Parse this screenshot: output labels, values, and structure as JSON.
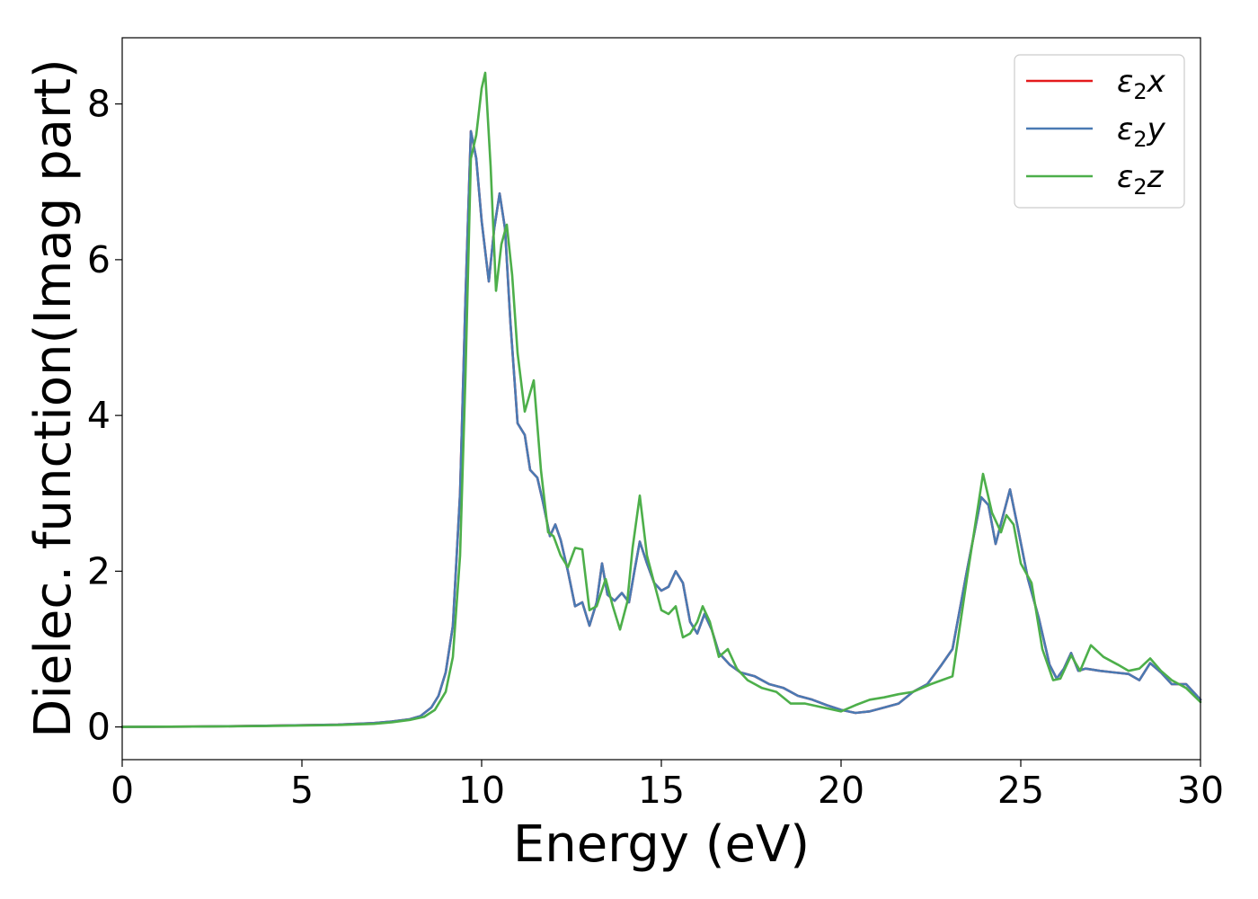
{
  "chart_data": {
    "type": "line",
    "title": "",
    "xlabel": "Energy (eV)",
    "ylabel": "Dielec. function(Imag part)",
    "xlim": [
      0,
      30
    ],
    "ylim": [
      -0.42,
      8.85
    ],
    "xticks": [
      0,
      5,
      10,
      15,
      20,
      25,
      30
    ],
    "yticks": [
      0,
      2,
      4,
      6,
      8
    ],
    "xtick_labels": [
      "0",
      "5",
      "10",
      "15",
      "20",
      "25",
      "30"
    ],
    "ytick_labels": [
      "0",
      "2",
      "4",
      "6",
      "8"
    ],
    "grid": false,
    "legend_position": "top-right",
    "series": [
      {
        "name": "ε2x",
        "legend_base": "ε",
        "legend_sub": "2",
        "legend_tail": "x",
        "color": "#e41a1c",
        "points": [
          [
            0,
            0
          ],
          [
            2,
            0.005
          ],
          [
            4,
            0.015
          ],
          [
            6,
            0.03
          ],
          [
            7,
            0.05
          ],
          [
            7.5,
            0.07
          ],
          [
            8,
            0.1
          ],
          [
            8.3,
            0.14
          ],
          [
            8.6,
            0.25
          ],
          [
            8.8,
            0.4
          ],
          [
            9.0,
            0.7
          ],
          [
            9.2,
            1.3
          ],
          [
            9.4,
            3.0
          ],
          [
            9.55,
            5.5
          ],
          [
            9.7,
            7.65
          ],
          [
            9.85,
            7.3
          ],
          [
            10.0,
            6.5
          ],
          [
            10.2,
            5.72
          ],
          [
            10.35,
            6.4
          ],
          [
            10.5,
            6.85
          ],
          [
            10.65,
            6.4
          ],
          [
            10.8,
            5.2
          ],
          [
            11.0,
            3.9
          ],
          [
            11.2,
            3.75
          ],
          [
            11.35,
            3.3
          ],
          [
            11.55,
            3.2
          ],
          [
            11.7,
            2.9
          ],
          [
            11.9,
            2.45
          ],
          [
            12.05,
            2.6
          ],
          [
            12.2,
            2.4
          ],
          [
            12.4,
            2.0
          ],
          [
            12.6,
            1.55
          ],
          [
            12.8,
            1.6
          ],
          [
            13.0,
            1.3
          ],
          [
            13.2,
            1.6
          ],
          [
            13.35,
            2.1
          ],
          [
            13.5,
            1.7
          ],
          [
            13.7,
            1.62
          ],
          [
            13.9,
            1.72
          ],
          [
            14.1,
            1.6
          ],
          [
            14.25,
            2.0
          ],
          [
            14.4,
            2.38
          ],
          [
            14.6,
            2.1
          ],
          [
            14.8,
            1.85
          ],
          [
            15.0,
            1.75
          ],
          [
            15.2,
            1.8
          ],
          [
            15.4,
            2.0
          ],
          [
            15.6,
            1.85
          ],
          [
            15.8,
            1.35
          ],
          [
            16.0,
            1.2
          ],
          [
            16.2,
            1.45
          ],
          [
            16.4,
            1.25
          ],
          [
            16.6,
            0.95
          ],
          [
            16.9,
            0.8
          ],
          [
            17.2,
            0.7
          ],
          [
            17.6,
            0.65
          ],
          [
            18.0,
            0.55
          ],
          [
            18.4,
            0.5
          ],
          [
            18.8,
            0.4
          ],
          [
            19.2,
            0.35
          ],
          [
            19.6,
            0.28
          ],
          [
            20.0,
            0.22
          ],
          [
            20.4,
            0.18
          ],
          [
            20.8,
            0.2
          ],
          [
            21.2,
            0.25
          ],
          [
            21.6,
            0.3
          ],
          [
            22.0,
            0.45
          ],
          [
            22.4,
            0.55
          ],
          [
            22.8,
            0.8
          ],
          [
            23.1,
            1.0
          ],
          [
            23.5,
            2.0
          ],
          [
            23.9,
            2.95
          ],
          [
            24.1,
            2.85
          ],
          [
            24.3,
            2.35
          ],
          [
            24.5,
            2.7
          ],
          [
            24.7,
            3.05
          ],
          [
            24.9,
            2.6
          ],
          [
            25.2,
            1.9
          ],
          [
            25.5,
            1.4
          ],
          [
            25.8,
            0.8
          ],
          [
            26.0,
            0.62
          ],
          [
            26.2,
            0.75
          ],
          [
            26.4,
            0.95
          ],
          [
            26.6,
            0.72
          ],
          [
            26.8,
            0.75
          ],
          [
            27.2,
            0.72
          ],
          [
            27.6,
            0.7
          ],
          [
            28.0,
            0.68
          ],
          [
            28.3,
            0.6
          ],
          [
            28.6,
            0.82
          ],
          [
            28.9,
            0.7
          ],
          [
            29.2,
            0.55
          ],
          [
            29.6,
            0.55
          ],
          [
            30.0,
            0.35
          ]
        ]
      },
      {
        "name": "ε2y",
        "legend_base": "ε",
        "legend_sub": "2",
        "legend_tail": "y",
        "color": "#4a7ab3",
        "points": [
          [
            0,
            0
          ],
          [
            2,
            0.005
          ],
          [
            4,
            0.015
          ],
          [
            6,
            0.03
          ],
          [
            7,
            0.05
          ],
          [
            7.5,
            0.07
          ],
          [
            8,
            0.1
          ],
          [
            8.3,
            0.14
          ],
          [
            8.6,
            0.25
          ],
          [
            8.8,
            0.4
          ],
          [
            9.0,
            0.7
          ],
          [
            9.2,
            1.3
          ],
          [
            9.4,
            3.0
          ],
          [
            9.55,
            5.5
          ],
          [
            9.7,
            7.65
          ],
          [
            9.85,
            7.3
          ],
          [
            10.0,
            6.5
          ],
          [
            10.2,
            5.72
          ],
          [
            10.35,
            6.4
          ],
          [
            10.5,
            6.85
          ],
          [
            10.65,
            6.4
          ],
          [
            10.8,
            5.2
          ],
          [
            11.0,
            3.9
          ],
          [
            11.2,
            3.75
          ],
          [
            11.35,
            3.3
          ],
          [
            11.55,
            3.2
          ],
          [
            11.7,
            2.9
          ],
          [
            11.9,
            2.45
          ],
          [
            12.05,
            2.6
          ],
          [
            12.2,
            2.4
          ],
          [
            12.4,
            2.0
          ],
          [
            12.6,
            1.55
          ],
          [
            12.8,
            1.6
          ],
          [
            13.0,
            1.3
          ],
          [
            13.2,
            1.6
          ],
          [
            13.35,
            2.1
          ],
          [
            13.5,
            1.7
          ],
          [
            13.7,
            1.62
          ],
          [
            13.9,
            1.72
          ],
          [
            14.1,
            1.6
          ],
          [
            14.25,
            2.0
          ],
          [
            14.4,
            2.38
          ],
          [
            14.6,
            2.1
          ],
          [
            14.8,
            1.85
          ],
          [
            15.0,
            1.75
          ],
          [
            15.2,
            1.8
          ],
          [
            15.4,
            2.0
          ],
          [
            15.6,
            1.85
          ],
          [
            15.8,
            1.35
          ],
          [
            16.0,
            1.2
          ],
          [
            16.2,
            1.45
          ],
          [
            16.4,
            1.25
          ],
          [
            16.6,
            0.95
          ],
          [
            16.9,
            0.8
          ],
          [
            17.2,
            0.7
          ],
          [
            17.6,
            0.65
          ],
          [
            18.0,
            0.55
          ],
          [
            18.4,
            0.5
          ],
          [
            18.8,
            0.4
          ],
          [
            19.2,
            0.35
          ],
          [
            19.6,
            0.28
          ],
          [
            20.0,
            0.22
          ],
          [
            20.4,
            0.18
          ],
          [
            20.8,
            0.2
          ],
          [
            21.2,
            0.25
          ],
          [
            21.6,
            0.3
          ],
          [
            22.0,
            0.45
          ],
          [
            22.4,
            0.55
          ],
          [
            22.8,
            0.8
          ],
          [
            23.1,
            1.0
          ],
          [
            23.5,
            2.0
          ],
          [
            23.9,
            2.95
          ],
          [
            24.1,
            2.85
          ],
          [
            24.3,
            2.35
          ],
          [
            24.5,
            2.7
          ],
          [
            24.7,
            3.05
          ],
          [
            24.9,
            2.6
          ],
          [
            25.2,
            1.9
          ],
          [
            25.5,
            1.4
          ],
          [
            25.8,
            0.8
          ],
          [
            26.0,
            0.62
          ],
          [
            26.2,
            0.75
          ],
          [
            26.4,
            0.95
          ],
          [
            26.6,
            0.72
          ],
          [
            26.8,
            0.75
          ],
          [
            27.2,
            0.72
          ],
          [
            27.6,
            0.7
          ],
          [
            28.0,
            0.68
          ],
          [
            28.3,
            0.6
          ],
          [
            28.6,
            0.82
          ],
          [
            28.9,
            0.7
          ],
          [
            29.2,
            0.55
          ],
          [
            29.6,
            0.55
          ],
          [
            30.0,
            0.35
          ]
        ]
      },
      {
        "name": "ε2z",
        "legend_base": "ε",
        "legend_sub": "2",
        "legend_tail": "z",
        "color": "#4daf4a",
        "points": [
          [
            0,
            0
          ],
          [
            2,
            0.005
          ],
          [
            4,
            0.012
          ],
          [
            6,
            0.025
          ],
          [
            7,
            0.04
          ],
          [
            7.5,
            0.06
          ],
          [
            8,
            0.09
          ],
          [
            8.4,
            0.13
          ],
          [
            8.7,
            0.22
          ],
          [
            9.0,
            0.45
          ],
          [
            9.2,
            0.9
          ],
          [
            9.4,
            2.2
          ],
          [
            9.55,
            4.5
          ],
          [
            9.7,
            7.3
          ],
          [
            9.85,
            7.6
          ],
          [
            10.0,
            8.2
          ],
          [
            10.1,
            8.4
          ],
          [
            10.25,
            7.2
          ],
          [
            10.4,
            5.6
          ],
          [
            10.55,
            6.2
          ],
          [
            10.7,
            6.45
          ],
          [
            10.85,
            5.8
          ],
          [
            11.0,
            4.8
          ],
          [
            11.2,
            4.05
          ],
          [
            11.45,
            4.45
          ],
          [
            11.65,
            3.3
          ],
          [
            11.85,
            2.5
          ],
          [
            12.0,
            2.45
          ],
          [
            12.2,
            2.2
          ],
          [
            12.4,
            2.05
          ],
          [
            12.6,
            2.3
          ],
          [
            12.8,
            2.28
          ],
          [
            13.0,
            1.5
          ],
          [
            13.2,
            1.55
          ],
          [
            13.45,
            1.9
          ],
          [
            13.65,
            1.55
          ],
          [
            13.85,
            1.25
          ],
          [
            14.05,
            1.6
          ],
          [
            14.2,
            2.3
          ],
          [
            14.4,
            2.97
          ],
          [
            14.6,
            2.2
          ],
          [
            14.8,
            1.85
          ],
          [
            15.0,
            1.5
          ],
          [
            15.2,
            1.45
          ],
          [
            15.4,
            1.55
          ],
          [
            15.6,
            1.15
          ],
          [
            15.8,
            1.2
          ],
          [
            16.0,
            1.35
          ],
          [
            16.15,
            1.55
          ],
          [
            16.35,
            1.35
          ],
          [
            16.6,
            0.9
          ],
          [
            16.85,
            1.0
          ],
          [
            17.1,
            0.75
          ],
          [
            17.4,
            0.6
          ],
          [
            17.8,
            0.5
          ],
          [
            18.2,
            0.45
          ],
          [
            18.6,
            0.3
          ],
          [
            19.0,
            0.3
          ],
          [
            19.5,
            0.25
          ],
          [
            20.0,
            0.2
          ],
          [
            20.4,
            0.28
          ],
          [
            20.8,
            0.35
          ],
          [
            21.2,
            0.38
          ],
          [
            21.6,
            0.42
          ],
          [
            22.0,
            0.45
          ],
          [
            22.5,
            0.55
          ],
          [
            22.8,
            0.6
          ],
          [
            23.1,
            0.65
          ],
          [
            23.5,
            1.9
          ],
          [
            23.95,
            3.25
          ],
          [
            24.2,
            2.75
          ],
          [
            24.45,
            2.5
          ],
          [
            24.6,
            2.72
          ],
          [
            24.8,
            2.6
          ],
          [
            25.0,
            2.1
          ],
          [
            25.3,
            1.85
          ],
          [
            25.6,
            1.0
          ],
          [
            25.9,
            0.6
          ],
          [
            26.1,
            0.62
          ],
          [
            26.4,
            0.92
          ],
          [
            26.65,
            0.72
          ],
          [
            26.95,
            1.05
          ],
          [
            27.3,
            0.9
          ],
          [
            27.7,
            0.8
          ],
          [
            28.0,
            0.72
          ],
          [
            28.3,
            0.75
          ],
          [
            28.6,
            0.88
          ],
          [
            28.9,
            0.72
          ],
          [
            29.2,
            0.6
          ],
          [
            29.6,
            0.5
          ],
          [
            30.0,
            0.32
          ]
        ]
      }
    ]
  }
}
